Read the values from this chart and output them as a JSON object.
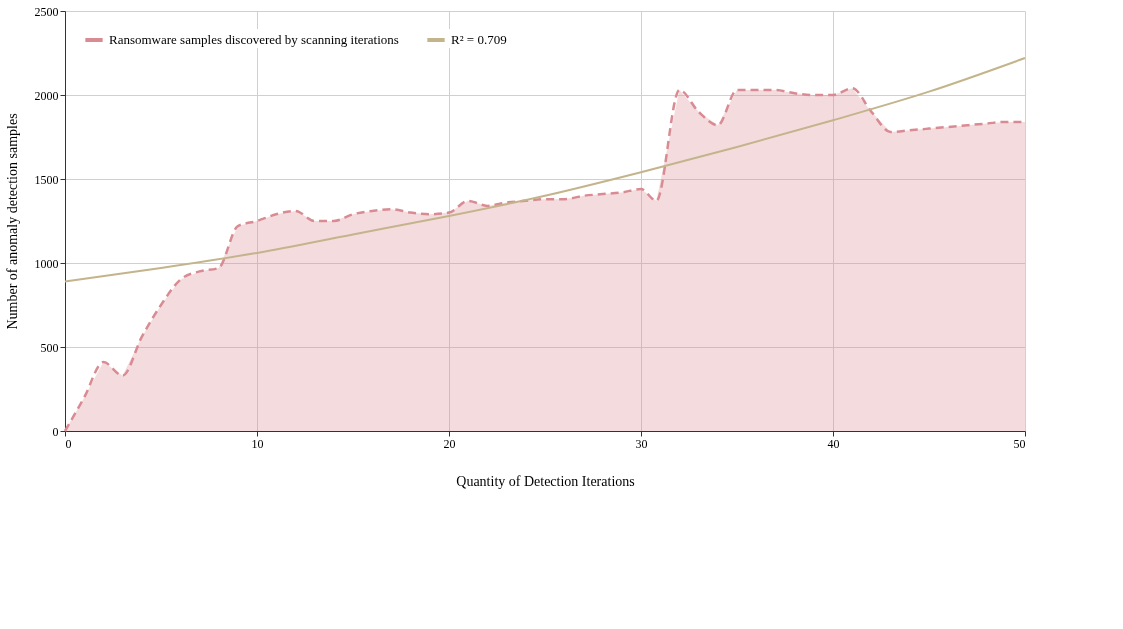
{
  "chart_data": {
    "type": "area",
    "xlabel": "Quantity of Detection Iterations",
    "ylabel": "Number of anomaly detection samples",
    "xlim": [
      0,
      50
    ],
    "ylim": [
      0,
      2500
    ],
    "xticks": [
      0,
      10,
      20,
      30,
      40,
      50
    ],
    "yticks": [
      0,
      500,
      1000,
      1500,
      2000,
      2500
    ],
    "grid": true,
    "legend": "top left",
    "series": [
      {
        "name": "Ransomware samples discovered by scanning iterations",
        "color": "#d98b93",
        "line_style": "dashed",
        "x": [
          0,
          1,
          2,
          3,
          4,
          5,
          6,
          7,
          8,
          9,
          10,
          11,
          12,
          13,
          14,
          15,
          16,
          17,
          18,
          19,
          20,
          21,
          22,
          23,
          24,
          25,
          26,
          27,
          28,
          29,
          30,
          30.8,
          32,
          33,
          34,
          35,
          36,
          37,
          38,
          39,
          40,
          41,
          42,
          43,
          44,
          45,
          46,
          47,
          48,
          49,
          50
        ],
        "values": [
          0,
          200,
          410,
          330,
          560,
          750,
          900,
          950,
          970,
          1220,
          1250,
          1290,
          1310,
          1250,
          1250,
          1290,
          1310,
          1320,
          1300,
          1290,
          1300,
          1370,
          1340,
          1360,
          1370,
          1380,
          1380,
          1400,
          1410,
          1420,
          1440,
          1370,
          2030,
          1900,
          1820,
          2030,
          2030,
          2030,
          2010,
          2000,
          2000,
          2040,
          1900,
          1780,
          1790,
          1800,
          1810,
          1820,
          1830,
          1840,
          1840
        ]
      },
      {
        "name": "R² = 0.709",
        "type": "line",
        "color": "#c4b48c",
        "line_style": "solid",
        "x": [
          0,
          5,
          10,
          15,
          20,
          25,
          30,
          35,
          40,
          45,
          50
        ],
        "values": [
          890,
          970,
          1060,
          1170,
          1280,
          1400,
          1540,
          1690,
          1850,
          2020,
          2220
        ]
      }
    ]
  }
}
